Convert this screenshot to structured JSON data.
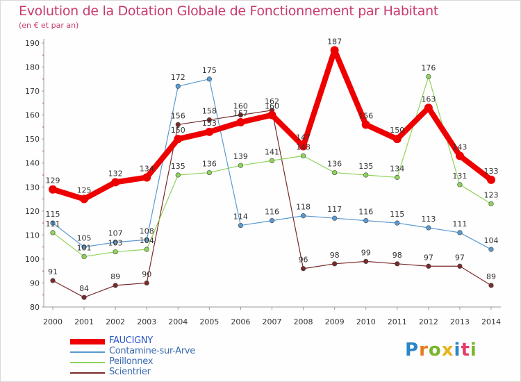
{
  "title": "Evolution de la Dotation Globale de Fonctionnement par Habitant",
  "subtitle": "(en € et par an)",
  "logo": {
    "text": "Proxiti",
    "colors": [
      "#2a86c8",
      "#e87a1e",
      "#7ab62a",
      "#e8b41e",
      "#2a86c8",
      "#e83a6e",
      "#7ab62a"
    ]
  },
  "chart_data": {
    "type": "line",
    "title": "Evolution de la Dotation Globale de Fonctionnement par Habitant",
    "subtitle": "(en € et par an)",
    "x": [
      "2000",
      "2001",
      "2002",
      "2003",
      "2004",
      "2005",
      "2006",
      "2007",
      "2008",
      "2009",
      "2010",
      "2011",
      "2012",
      "2013",
      "2014"
    ],
    "ylim": [
      80,
      190
    ],
    "yticks": [
      80,
      90,
      100,
      110,
      120,
      130,
      140,
      150,
      160,
      170,
      180,
      190
    ],
    "grid": false,
    "legend": "bottom-left",
    "series": [
      {
        "name": "Scientrier",
        "color": "#7a2a2a",
        "values": [
          91,
          84,
          89,
          90,
          156,
          158,
          160,
          162,
          96,
          98,
          99,
          98,
          97,
          97,
          89
        ]
      },
      {
        "name": "Peillonnex",
        "color": "#8fd45a",
        "values": [
          111,
          101,
          103,
          104,
          135,
          136,
          139,
          141,
          143,
          136,
          135,
          134,
          176,
          131,
          123
        ]
      },
      {
        "name": "Contamine-sur-Arve",
        "color": "#5a9ad0",
        "values": [
          115,
          105,
          107,
          108,
          172,
          175,
          114,
          116,
          118,
          117,
          116,
          115,
          113,
          111,
          104
        ]
      },
      {
        "name": "FAUCIGNY",
        "color": "#ee0000",
        "values": [
          129,
          125,
          132,
          134,
          150,
          153,
          157,
          160,
          147,
          187,
          156,
          150,
          163,
          143,
          133
        ]
      }
    ]
  }
}
